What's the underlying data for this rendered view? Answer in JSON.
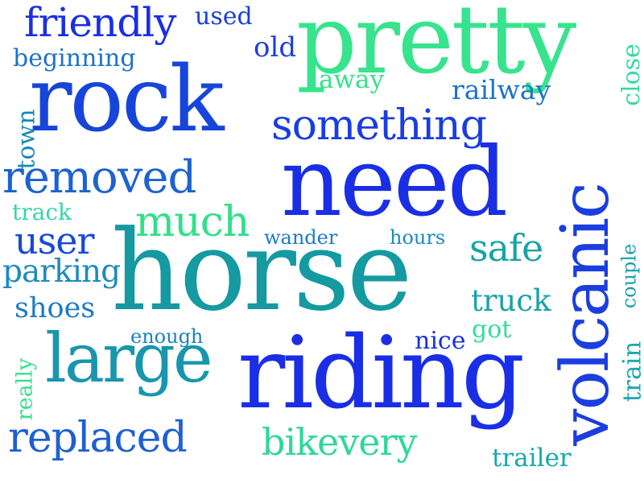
{
  "cloud": {
    "words": [
      {
        "text": "horse",
        "color": "#149aa0"
      },
      {
        "text": "riding",
        "color": "#1a2ee6"
      },
      {
        "text": "need",
        "color": "#1a2ee6"
      },
      {
        "text": "pretty",
        "color": "#37e38c"
      },
      {
        "text": "rock",
        "color": "#1745da"
      },
      {
        "text": "volcanic",
        "color": "#1a3ee0"
      },
      {
        "text": "large",
        "color": "#1896ae"
      },
      {
        "text": "something",
        "color": "#1a3de0"
      },
      {
        "text": "removed",
        "color": "#1d62d0"
      },
      {
        "text": "friendly",
        "color": "#1a2ee6"
      },
      {
        "text": "replaced",
        "color": "#1d60d2"
      },
      {
        "text": "much",
        "color": "#31e08a"
      },
      {
        "text": "bikevery",
        "color": "#2fd898"
      },
      {
        "text": "user",
        "color": "#1748da"
      },
      {
        "text": "safe",
        "color": "#18a4a4"
      },
      {
        "text": "truck",
        "color": "#18a2aa"
      },
      {
        "text": "parking",
        "color": "#1c8ac0"
      },
      {
        "text": "shoes",
        "color": "#1c7ac8"
      },
      {
        "text": "beginning",
        "color": "#1c72ca"
      },
      {
        "text": "railway",
        "color": "#1c74c8"
      },
      {
        "text": "trailer",
        "color": "#18a8ac"
      },
      {
        "text": "old",
        "color": "#1a3ee0"
      },
      {
        "text": "away",
        "color": "#37e08c"
      },
      {
        "text": "used",
        "color": "#1a3ee0"
      },
      {
        "text": "close",
        "color": "#32dca0"
      },
      {
        "text": "town",
        "color": "#1888b6"
      },
      {
        "text": "track",
        "color": "#36d6a8"
      },
      {
        "text": "wander",
        "color": "#1a7cc6"
      },
      {
        "text": "hours",
        "color": "#1a8cc0"
      },
      {
        "text": "couple",
        "color": "#18a2ae"
      },
      {
        "text": "train",
        "color": "#1aa8b0"
      },
      {
        "text": "enough",
        "color": "#1884bc"
      },
      {
        "text": "nice",
        "color": "#1a2ee6"
      },
      {
        "text": "got",
        "color": "#34dc98"
      },
      {
        "text": "really",
        "color": "#37e08c"
      }
    ]
  }
}
